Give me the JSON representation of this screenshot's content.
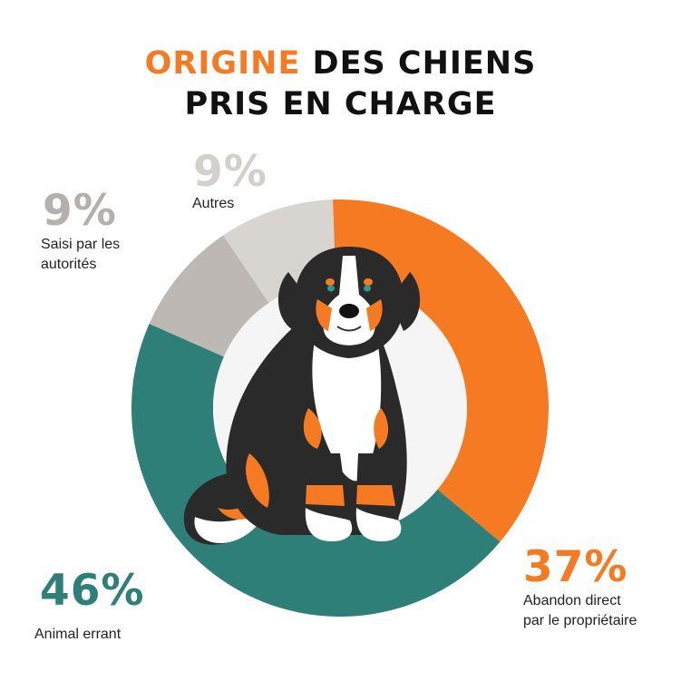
{
  "title": {
    "accent": "ORIGINE",
    "line1_rest": " DES CHIENS",
    "line2": "PRIS EN CHARGE"
  },
  "colors": {
    "orange": "#f57a22",
    "teal": "#2e7f78",
    "gray": "#bdb8b3",
    "light_gray": "#d8d5d1",
    "inner": "#f5f5f5"
  },
  "chart_data": {
    "type": "pie",
    "title": "ORIGINE DES CHIENS PRIS EN CHARGE",
    "donut": true,
    "slices": [
      {
        "label": "Abandon direct par le propriétaire",
        "value": 37,
        "display": "37%",
        "color": "#f57a22"
      },
      {
        "label": "Animal errant",
        "value": 46,
        "display": "46%",
        "color": "#2e7f78"
      },
      {
        "label": "Saisi par les autorités",
        "value": 9,
        "display": "9%",
        "color": "#bdb8b3"
      },
      {
        "label": "Autres",
        "value": 9,
        "display": "9%",
        "color": "#d8d5d1"
      }
    ]
  },
  "labels": {
    "abandon": {
      "pct": "37%",
      "line1": "Abandon direct",
      "line2": "par le propriétaire"
    },
    "errant": {
      "pct": "46%",
      "line1": "Animal errant"
    },
    "saisi": {
      "pct": "9%",
      "line1": "Saisi par les",
      "line2": "autorités"
    },
    "autres": {
      "pct": "9%",
      "line1": "Autres"
    }
  }
}
